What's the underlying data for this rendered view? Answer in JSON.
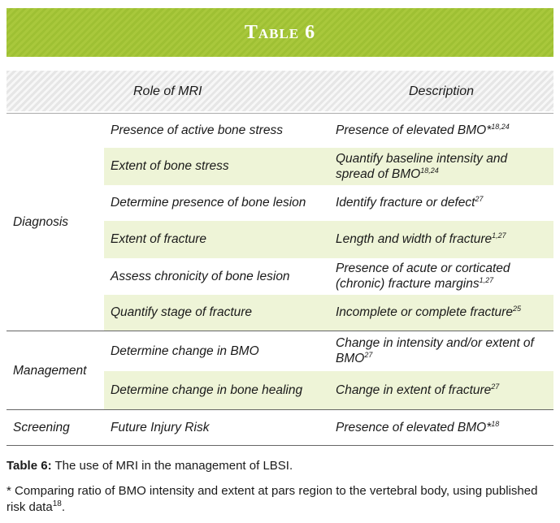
{
  "title": "Table 6",
  "columns": [
    "Role of MRI",
    "Description"
  ],
  "groups": [
    {
      "name": "Diagnosis",
      "rows": [
        {
          "role": "Presence of active bone stress",
          "description": {
            "text": "Presence of elevated BMO*",
            "sup": "18,24"
          }
        },
        {
          "role": "Extent of bone stress",
          "description": {
            "text": "Quantify baseline intensity and spread of BMO",
            "sup": "18,24"
          }
        },
        {
          "role": "Determine presence of bone lesion",
          "description": {
            "text": "Identify fracture or defect",
            "sup": "27"
          }
        },
        {
          "role": "Extent of fracture",
          "description": {
            "text": "Length and width of fracture",
            "sup": "1,27"
          }
        },
        {
          "role": "Assess chronicity of bone lesion",
          "description": {
            "text": "Presence of acute or corticated (chronic) fracture margins",
            "sup": "1,27"
          }
        },
        {
          "role": "Quantify stage of fracture",
          "description": {
            "text": "Incomplete or complete fracture",
            "sup": "25"
          }
        }
      ]
    },
    {
      "name": "Management",
      "rows": [
        {
          "role": "Determine change in BMO",
          "description": {
            "text": "Change in intensity and/or extent of BMO",
            "sup": "27"
          }
        },
        {
          "role": "Determine change in bone healing",
          "description": {
            "text": "Change in extent of fracture",
            "sup": "27"
          }
        }
      ]
    },
    {
      "name": "Screening",
      "rows": [
        {
          "role": "Future Injury Risk",
          "description": {
            "text": "Presence of elevated BMO*",
            "sup": "18"
          }
        }
      ]
    }
  ],
  "caption": {
    "label": "Table 6:",
    "text": " The use of MRI in the management of LBSI."
  },
  "footnote": {
    "text": "* Comparing ratio of BMO intensity and extent at pars region to the vertebral body, using published risk data",
    "sup": "18",
    "end": "."
  }
}
